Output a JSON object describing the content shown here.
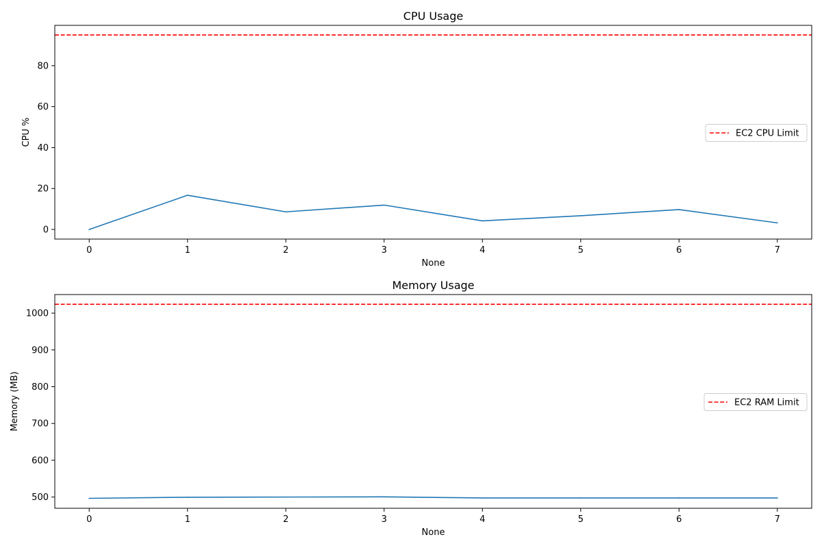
{
  "chart_data": [
    {
      "type": "line",
      "title": "CPU Usage",
      "xlabel": "None",
      "ylabel": "CPU %",
      "x": [
        0,
        1,
        2,
        3,
        4,
        5,
        6,
        7
      ],
      "xticks": [
        0,
        1,
        2,
        3,
        4,
        5,
        6,
        7
      ],
      "yticks": [
        0,
        20,
        40,
        60,
        80
      ],
      "xlim": [
        -0.35,
        7.35
      ],
      "ylim": [
        -4.7,
        99.7
      ],
      "series": [
        {
          "values": [
            0,
            16.7,
            8.6,
            11.9,
            4.2,
            6.7,
            9.7,
            3.2
          ],
          "color": "#1f77b4"
        }
      ],
      "reference_lines": [
        {
          "y": 95,
          "label": "EC2 CPU Limit",
          "color": "#ff0000",
          "style": "dashed"
        }
      ],
      "legend": "center-right",
      "grid": false
    },
    {
      "type": "line",
      "title": "Memory Usage",
      "xlabel": "None",
      "ylabel": "Memory (MB)",
      "x": [
        0,
        1,
        2,
        3,
        4,
        5,
        6,
        7
      ],
      "xticks": [
        0,
        1,
        2,
        3,
        4,
        5,
        6,
        7
      ],
      "yticks": [
        500,
        600,
        700,
        800,
        900,
        1000
      ],
      "xlim": [
        -0.35,
        7.35
      ],
      "ylim": [
        469.5,
        1050.5
      ],
      "series": [
        {
          "values": [
            496.5,
            499.5,
            500,
            500.5,
            497.5,
            497.5,
            497.5,
            497.5
          ],
          "color": "#1f77b4"
        }
      ],
      "reference_lines": [
        {
          "y": 1024,
          "label": "EC2 RAM Limit",
          "color": "#ff0000",
          "style": "dashed"
        }
      ],
      "legend": "center-right",
      "grid": false
    }
  ]
}
